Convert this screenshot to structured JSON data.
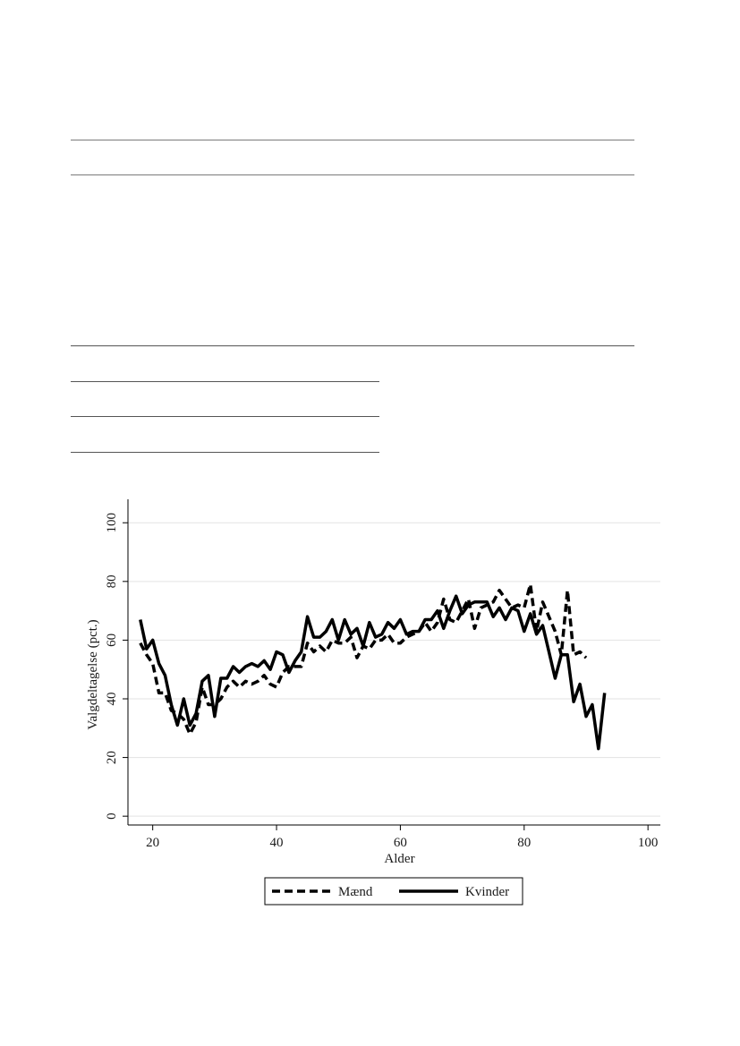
{
  "chart_data": {
    "type": "line",
    "xlabel": "Alder",
    "ylabel": "Valgdeltagelse (pct.)",
    "xlim": [
      16,
      102
    ],
    "ylim": [
      -3,
      108
    ],
    "x_ticks": [
      20,
      40,
      60,
      80,
      100
    ],
    "y_ticks": [
      0,
      20,
      40,
      60,
      80,
      100
    ],
    "grid": "horizontal",
    "legend_position": "bottom",
    "series": [
      {
        "name": "Mænd",
        "style": "dashed",
        "color": "#000000",
        "x": [
          18,
          19,
          20,
          21,
          22,
          23,
          24,
          25,
          26,
          27,
          28,
          29,
          30,
          31,
          32,
          33,
          34,
          35,
          36,
          37,
          38,
          39,
          40,
          41,
          42,
          43,
          44,
          45,
          46,
          47,
          48,
          49,
          50,
          51,
          52,
          53,
          54,
          55,
          56,
          57,
          58,
          59,
          60,
          61,
          62,
          63,
          64,
          65,
          66,
          67,
          68,
          69,
          70,
          71,
          72,
          73,
          74,
          75,
          76,
          77,
          78,
          79,
          80,
          81,
          82,
          83,
          84,
          85,
          86,
          87,
          88,
          89,
          90
        ],
        "y": [
          59,
          55,
          52,
          42,
          42,
          36,
          35,
          33,
          28,
          32,
          44,
          38,
          38,
          40,
          44,
          46,
          44,
          46,
          45,
          46,
          48,
          45,
          44,
          49,
          51,
          51,
          51,
          59,
          56,
          58,
          56,
          60,
          59,
          59,
          61,
          54,
          58,
          57,
          60,
          60,
          62,
          59,
          59,
          61,
          62,
          63,
          66,
          63,
          66,
          74,
          67,
          66,
          70,
          74,
          64,
          71,
          72,
          73,
          77,
          74,
          71,
          72,
          71,
          79,
          63,
          73,
          68,
          63,
          55,
          77,
          55,
          56,
          54
        ]
      },
      {
        "name": "Kvinder",
        "style": "solid",
        "color": "#000000",
        "x": [
          18,
          19,
          20,
          21,
          22,
          23,
          24,
          25,
          26,
          27,
          28,
          29,
          30,
          31,
          32,
          33,
          34,
          35,
          36,
          37,
          38,
          39,
          40,
          41,
          42,
          43,
          44,
          45,
          46,
          47,
          48,
          49,
          50,
          51,
          52,
          53,
          54,
          55,
          56,
          57,
          58,
          59,
          60,
          61,
          62,
          63,
          64,
          65,
          66,
          67,
          68,
          69,
          70,
          71,
          72,
          73,
          74,
          75,
          76,
          77,
          78,
          79,
          80,
          81,
          82,
          83,
          84,
          85,
          86,
          87,
          88,
          89,
          90,
          91,
          92,
          93
        ],
        "y": [
          67,
          57,
          60,
          52,
          48,
          38,
          31,
          40,
          31,
          35,
          46,
          48,
          34,
          47,
          47,
          51,
          49,
          51,
          52,
          51,
          53,
          50,
          56,
          55,
          49,
          53,
          56,
          68,
          61,
          61,
          63,
          67,
          60,
          67,
          62,
          64,
          58,
          66,
          61,
          62,
          66,
          64,
          67,
          62,
          63,
          63,
          67,
          67,
          70,
          64,
          70,
          75,
          69,
          72,
          73,
          73,
          73,
          68,
          71,
          67,
          71,
          70,
          63,
          69,
          62,
          65,
          56,
          47,
          55,
          55,
          39,
          45,
          34,
          38,
          23,
          42
        ]
      }
    ]
  }
}
